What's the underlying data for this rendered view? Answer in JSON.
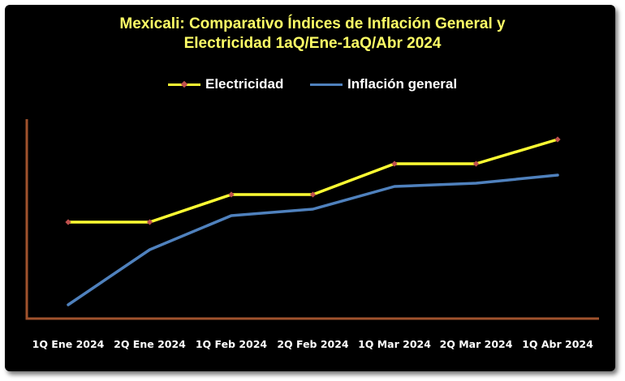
{
  "colors": {
    "background": "#000000",
    "title": "#ffff66",
    "axis": "#a0522d",
    "tick_label": "#ffffff",
    "electricidad_line": "#ffff33",
    "electricidad_marker": "#c0504d",
    "inflacion_line": "#4f81bd"
  },
  "chart_data": {
    "type": "line",
    "title": "Mexicali: Comparativo Índices de Inflación General y Electricidad 1aQ/Ene-1aQ/Abr 2024",
    "title_lines": [
      "Mexicali: Comparativo Índices de Inflación General y",
      "Electricidad 1aQ/Ene-1aQ/Abr 2024"
    ],
    "xlabel": "",
    "ylabel": "",
    "legend_position": "top-center",
    "grid": false,
    "y_ticks_visible": false,
    "ylim": [
      0,
      100
    ],
    "categories": [
      "1Q Ene 2024",
      "2Q Ene 2024",
      "1Q Feb 2024",
      "2Q Feb 2024",
      "1Q Mar 2024",
      "2Q Mar 2024",
      "1Q Abr 2024"
    ],
    "series": [
      {
        "name": "Electricidad",
        "values": [
          51,
          51,
          68,
          68,
          87,
          87,
          102
        ],
        "markers": true
      },
      {
        "name": "Inflación general",
        "values": [
          0,
          34,
          55,
          59,
          73,
          75,
          80
        ],
        "markers": false
      }
    ]
  }
}
